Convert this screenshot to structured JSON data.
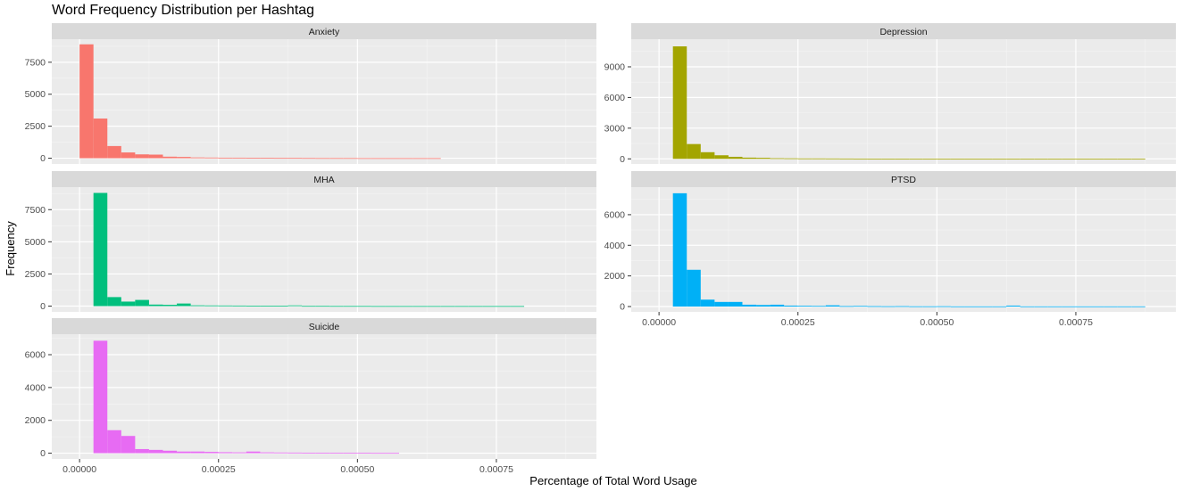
{
  "chart_data": {
    "type": "bar",
    "subtype": "faceted-histogram",
    "title": "Word Frequency Distribution per Hashtag",
    "xlabel": "Percentage of Total Word Usage",
    "ylabel": "Frequency",
    "xlim": [
      -5e-05,
      0.00093
    ],
    "bin_width": 2.5e-05,
    "x_ticks": [
      0,
      0.00025,
      0.0005,
      0.00075
    ],
    "x_tick_labels": [
      "0.00000",
      "0.00025",
      "0.00050",
      "0.00075"
    ],
    "panel_background": "#ebebeb",
    "strip_background": "#d9d9d9",
    "grid": true,
    "legend": "none",
    "panels": [
      {
        "name": "Anxiety",
        "color": "#F8766D",
        "ylim": [
          -450,
          9300
        ],
        "y_ticks": [
          0,
          2500,
          5000,
          7500
        ],
        "y_tick_labels": [
          "0",
          "2500",
          "5000",
          "7500"
        ],
        "bins": [
          {
            "x": 1.25e-05,
            "count": 8900
          },
          {
            "x": 3.75e-05,
            "count": 3100
          },
          {
            "x": 6.25e-05,
            "count": 950
          },
          {
            "x": 8.75e-05,
            "count": 450
          },
          {
            "x": 0.0001125,
            "count": 300
          },
          {
            "x": 0.0001375,
            "count": 280
          },
          {
            "x": 0.0001625,
            "count": 120
          },
          {
            "x": 0.0001875,
            "count": 100
          },
          {
            "x": 0.0002125,
            "count": 60
          },
          {
            "x": 0.0002375,
            "count": 50
          },
          {
            "x": 0.0002625,
            "count": 40
          },
          {
            "x": 0.0002875,
            "count": 40
          },
          {
            "x": 0.0003125,
            "count": 30
          },
          {
            "x": 0.0003375,
            "count": 30
          },
          {
            "x": 0.0003625,
            "count": 20
          },
          {
            "x": 0.0003875,
            "count": 20
          },
          {
            "x": 0.0004125,
            "count": 15
          },
          {
            "x": 0.0004375,
            "count": 10
          },
          {
            "x": 0.0004625,
            "count": 10
          },
          {
            "x": 0.0004875,
            "count": 10
          },
          {
            "x": 0.0005125,
            "count": 5
          },
          {
            "x": 0.0005375,
            "count": 5
          },
          {
            "x": 0.0005625,
            "count": 5
          },
          {
            "x": 0.0005875,
            "count": 5
          },
          {
            "x": 0.0006125,
            "count": 5
          },
          {
            "x": 0.0006375,
            "count": 5
          }
        ]
      },
      {
        "name": "Depression",
        "color": "#A3A500",
        "ylim": [
          -500,
          11700
        ],
        "y_ticks": [
          0,
          3000,
          6000,
          9000
        ],
        "y_tick_labels": [
          "0",
          "3000",
          "6000",
          "9000"
        ],
        "bins": [
          {
            "x": 3.75e-05,
            "count": 11000
          },
          {
            "x": 6.25e-05,
            "count": 1450
          },
          {
            "x": 8.75e-05,
            "count": 650
          },
          {
            "x": 0.0001125,
            "count": 350
          },
          {
            "x": 0.0001375,
            "count": 200
          },
          {
            "x": 0.0001625,
            "count": 120
          },
          {
            "x": 0.0001875,
            "count": 100
          },
          {
            "x": 0.0002125,
            "count": 60
          },
          {
            "x": 0.0002375,
            "count": 50
          },
          {
            "x": 0.0002625,
            "count": 40
          },
          {
            "x": 0.0002875,
            "count": 40
          },
          {
            "x": 0.0003125,
            "count": 35
          },
          {
            "x": 0.0003375,
            "count": 30
          },
          {
            "x": 0.0003625,
            "count": 25
          },
          {
            "x": 0.0003875,
            "count": 20
          },
          {
            "x": 0.0004125,
            "count": 15
          },
          {
            "x": 0.0004375,
            "count": 15
          },
          {
            "x": 0.0004625,
            "count": 10
          },
          {
            "x": 0.0004875,
            "count": 10
          },
          {
            "x": 0.0005125,
            "count": 10
          },
          {
            "x": 0.0005375,
            "count": 5
          },
          {
            "x": 0.0005625,
            "count": 5
          },
          {
            "x": 0.0005875,
            "count": 5
          },
          {
            "x": 0.0006125,
            "count": 5
          },
          {
            "x": 0.0006375,
            "count": 5
          },
          {
            "x": 0.0006625,
            "count": 5
          },
          {
            "x": 0.0006875,
            "count": 5
          },
          {
            "x": 0.0007125,
            "count": 5
          },
          {
            "x": 0.0007375,
            "count": 5
          },
          {
            "x": 0.0007625,
            "count": 5
          },
          {
            "x": 0.0007875,
            "count": 5
          },
          {
            "x": 0.0008125,
            "count": 5
          },
          {
            "x": 0.0008375,
            "count": 5
          },
          {
            "x": 0.0008625,
            "count": 5
          }
        ]
      },
      {
        "name": "MHA",
        "color": "#00BF7D",
        "ylim": [
          -450,
          9250
        ],
        "y_ticks": [
          0,
          2500,
          5000,
          7500
        ],
        "y_tick_labels": [
          "0",
          "2500",
          "5000",
          "7500"
        ],
        "bins": [
          {
            "x": 3.75e-05,
            "count": 8800
          },
          {
            "x": 6.25e-05,
            "count": 700
          },
          {
            "x": 8.75e-05,
            "count": 350
          },
          {
            "x": 0.0001125,
            "count": 480
          },
          {
            "x": 0.0001375,
            "count": 120
          },
          {
            "x": 0.0001625,
            "count": 100
          },
          {
            "x": 0.0001875,
            "count": 200
          },
          {
            "x": 0.0002125,
            "count": 60
          },
          {
            "x": 0.0002375,
            "count": 50
          },
          {
            "x": 0.0002625,
            "count": 45
          },
          {
            "x": 0.0002875,
            "count": 40
          },
          {
            "x": 0.0003125,
            "count": 35
          },
          {
            "x": 0.0003375,
            "count": 30
          },
          {
            "x": 0.0003625,
            "count": 25
          },
          {
            "x": 0.0003875,
            "count": 55
          },
          {
            "x": 0.0004125,
            "count": 15
          },
          {
            "x": 0.0004375,
            "count": 15
          },
          {
            "x": 0.0004625,
            "count": 10
          },
          {
            "x": 0.0004875,
            "count": 10
          },
          {
            "x": 0.0005125,
            "count": 10
          },
          {
            "x": 0.0005375,
            "count": 5
          },
          {
            "x": 0.0005625,
            "count": 5
          },
          {
            "x": 0.0005875,
            "count": 5
          },
          {
            "x": 0.0006125,
            "count": 5
          },
          {
            "x": 0.0006375,
            "count": 5
          },
          {
            "x": 0.0006625,
            "count": 5
          },
          {
            "x": 0.0006875,
            "count": 5
          },
          {
            "x": 0.0007125,
            "count": 5
          },
          {
            "x": 0.0007375,
            "count": 5
          },
          {
            "x": 0.0007625,
            "count": 5
          },
          {
            "x": 0.0007875,
            "count": 5
          }
        ]
      },
      {
        "name": "PTSD",
        "color": "#00B0F6",
        "ylim": [
          -350,
          7800
        ],
        "y_ticks": [
          0,
          2000,
          4000,
          6000
        ],
        "y_tick_labels": [
          "0",
          "2000",
          "4000",
          "6000"
        ],
        "bins": [
          {
            "x": 3.75e-05,
            "count": 7400
          },
          {
            "x": 6.25e-05,
            "count": 2400
          },
          {
            "x": 8.75e-05,
            "count": 450
          },
          {
            "x": 0.0001125,
            "count": 300
          },
          {
            "x": 0.0001375,
            "count": 300
          },
          {
            "x": 0.0001625,
            "count": 120
          },
          {
            "x": 0.0001875,
            "count": 100
          },
          {
            "x": 0.0002125,
            "count": 120
          },
          {
            "x": 0.0002375,
            "count": 60
          },
          {
            "x": 0.0002625,
            "count": 50
          },
          {
            "x": 0.0002875,
            "count": 40
          },
          {
            "x": 0.0003125,
            "count": 80
          },
          {
            "x": 0.0003375,
            "count": 30
          },
          {
            "x": 0.0003625,
            "count": 40
          },
          {
            "x": 0.0003875,
            "count": 25
          },
          {
            "x": 0.0004125,
            "count": 20
          },
          {
            "x": 0.0004375,
            "count": 25
          },
          {
            "x": 0.0004625,
            "count": 15
          },
          {
            "x": 0.0004875,
            "count": 15
          },
          {
            "x": 0.0005125,
            "count": 20
          },
          {
            "x": 0.0005375,
            "count": 10
          },
          {
            "x": 0.0005625,
            "count": 10
          },
          {
            "x": 0.0005875,
            "count": 10
          },
          {
            "x": 0.0006125,
            "count": 10
          },
          {
            "x": 0.0006375,
            "count": 60
          },
          {
            "x": 0.0006625,
            "count": 10
          },
          {
            "x": 0.0006875,
            "count": 10
          },
          {
            "x": 0.0007125,
            "count": 10
          },
          {
            "x": 0.0007375,
            "count": 10
          },
          {
            "x": 0.0007625,
            "count": 10
          },
          {
            "x": 0.0007875,
            "count": 10
          },
          {
            "x": 0.0008125,
            "count": 10
          },
          {
            "x": 0.0008375,
            "count": 10
          },
          {
            "x": 0.0008625,
            "count": 10
          }
        ]
      },
      {
        "name": "Suicide",
        "color": "#E76BF3",
        "ylim": [
          -350,
          7250
        ],
        "y_ticks": [
          0,
          2000,
          4000,
          6000
        ],
        "y_tick_labels": [
          "0",
          "2000",
          "4000",
          "6000"
        ],
        "bins": [
          {
            "x": 3.75e-05,
            "count": 6850
          },
          {
            "x": 6.25e-05,
            "count": 1400
          },
          {
            "x": 8.75e-05,
            "count": 1050
          },
          {
            "x": 0.0001125,
            "count": 250
          },
          {
            "x": 0.0001375,
            "count": 200
          },
          {
            "x": 0.0001625,
            "count": 150
          },
          {
            "x": 0.0001875,
            "count": 100
          },
          {
            "x": 0.0002125,
            "count": 100
          },
          {
            "x": 0.0002375,
            "count": 80
          },
          {
            "x": 0.0002625,
            "count": 60
          },
          {
            "x": 0.0002875,
            "count": 50
          },
          {
            "x": 0.0003125,
            "count": 100
          },
          {
            "x": 0.0003375,
            "count": 50
          },
          {
            "x": 0.0003625,
            "count": 40
          },
          {
            "x": 0.0003875,
            "count": 35
          },
          {
            "x": 0.0004125,
            "count": 30
          },
          {
            "x": 0.0004375,
            "count": 30
          },
          {
            "x": 0.0004625,
            "count": 25
          },
          {
            "x": 0.0004875,
            "count": 20
          },
          {
            "x": 0.0005125,
            "count": 20
          },
          {
            "x": 0.0005375,
            "count": 15
          },
          {
            "x": 0.0005625,
            "count": 15
          }
        ]
      }
    ]
  }
}
